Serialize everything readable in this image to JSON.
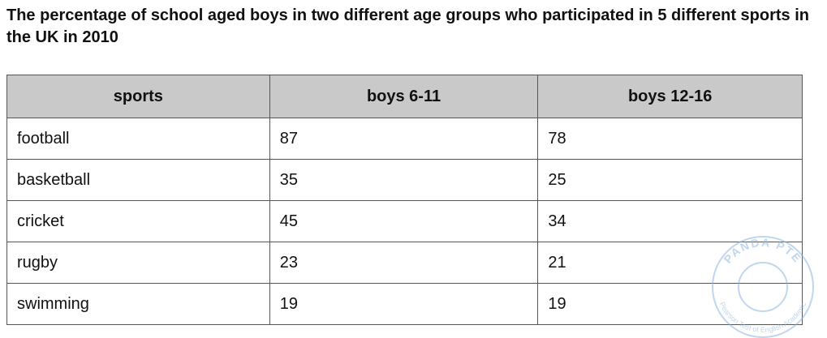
{
  "title": "The percentage of school aged boys in two different age groups who participated in 5 different sports in the UK in 2010",
  "table": {
    "header": [
      "sports",
      "boys 6-11",
      "boys 12-16"
    ],
    "rows": [
      [
        "football",
        87,
        78
      ],
      [
        "basketball",
        35,
        25
      ],
      [
        "cricket",
        45,
        34
      ],
      [
        "rugby",
        23,
        21
      ],
      [
        "swimming",
        19,
        19
      ]
    ]
  },
  "watermark": {
    "text": "PANDA PTE",
    "subtext": "Pearson Test of English Academic"
  }
}
